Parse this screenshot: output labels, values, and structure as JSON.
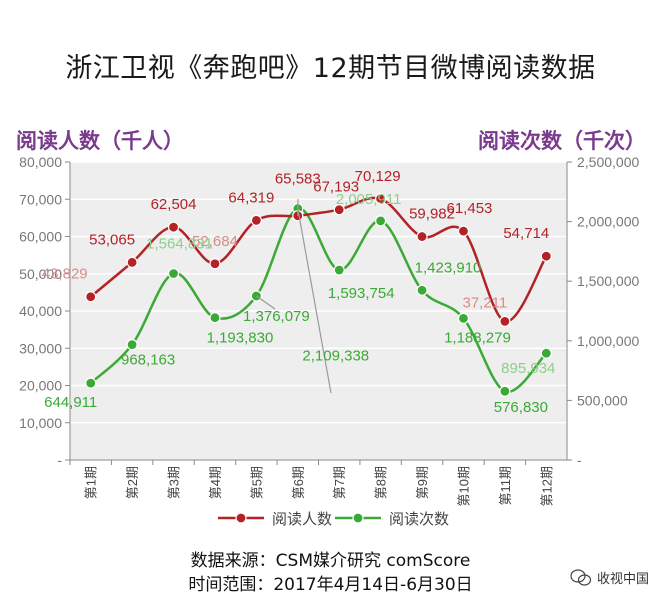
{
  "page": {
    "title": "浙江卫视《奔跑吧》12期节目微博阅读数据",
    "source": "数据来源：CSM媒介研究 comScore",
    "time_range": "时间范围：2017年4月14日-6月30日",
    "watermark": "收视中国",
    "watermark_icon": "wechat-icon"
  },
  "chart_data": {
    "type": "line",
    "categories": [
      "第1期",
      "第2期",
      "第3期",
      "第4期",
      "第5期",
      "第6期",
      "第7期",
      "第8期",
      "第9期",
      "第10期",
      "第11期",
      "第12期"
    ],
    "left_axis": {
      "label": "阅读人数（千人）",
      "range": [
        0,
        80000
      ],
      "ticks": [
        "-",
        "10,000",
        "20,000",
        "30,000",
        "40,000",
        "50,000",
        "60,000",
        "70,000",
        "80,000"
      ]
    },
    "right_axis": {
      "label": "阅读次数（千次）",
      "range": [
        0,
        2500000
      ],
      "ticks": [
        "-",
        "500,000",
        "1,000,000",
        "1,500,000",
        "2,000,000",
        "2,500,000"
      ]
    },
    "series": [
      {
        "name": "阅读人数",
        "axis": "left",
        "color": "#b32227",
        "values": [
          43829,
          53065,
          62504,
          52684,
          64319,
          65583,
          67193,
          70129,
          59982,
          61453,
          37211,
          54714
        ],
        "labels": [
          "43,829",
          "53,065",
          "62,504",
          "52,684",
          "64,319",
          "65,583",
          "67,193",
          "70,129",
          "59,982",
          "61,453",
          "37,211",
          "54,714"
        ]
      },
      {
        "name": "阅读次数",
        "axis": "right",
        "color": "#3aaa35",
        "values": [
          644911,
          968163,
          1564831,
          1193830,
          1376079,
          2109338,
          1593754,
          2005911,
          1423910,
          1188279,
          576830,
          895934
        ],
        "labels": [
          "644,911",
          "968,163",
          "1,564,831",
          "1,193,830",
          "1,376,079",
          "2,109,338",
          "1,593,754",
          "2,005,911",
          "1,423,910",
          "1,188,279",
          "576,830",
          "895,934"
        ]
      }
    ],
    "grid": true,
    "legend": "bottom"
  }
}
